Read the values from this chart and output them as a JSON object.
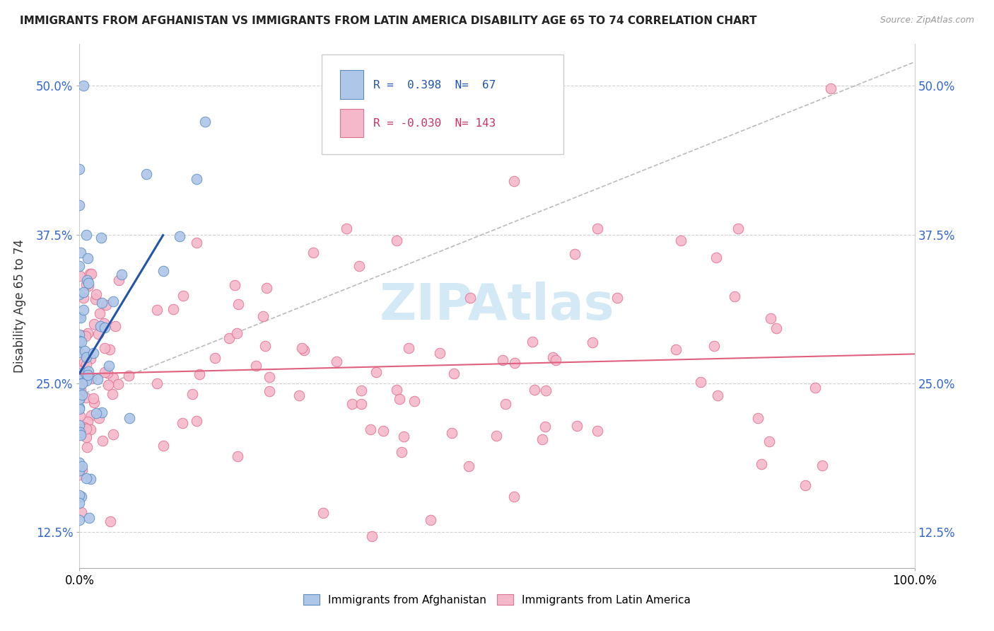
{
  "title": "IMMIGRANTS FROM AFGHANISTAN VS IMMIGRANTS FROM LATIN AMERICA DISABILITY AGE 65 TO 74 CORRELATION CHART",
  "source": "Source: ZipAtlas.com",
  "ylabel": "Disability Age 65 to 74",
  "afghanistan": {
    "R": 0.398,
    "N": 67,
    "color": "#aec6e8",
    "edge_color": "#5b8ec4",
    "line_color": "#2255aa",
    "label": "Immigrants from Afghanistan"
  },
  "latin_america": {
    "R": -0.03,
    "N": 143,
    "color": "#f5b8cb",
    "edge_color": "#e07090",
    "line_color": "#e06080",
    "label": "Immigrants from Latin America"
  },
  "xlim": [
    0.0,
    1.0
  ],
  "ylim": [
    0.095,
    0.535
  ],
  "yticks": [
    0.125,
    0.25,
    0.375,
    0.5
  ],
  "ytick_labels": [
    "12.5%",
    "25.0%",
    "37.5%",
    "50.0%"
  ],
  "xtick_labels_left": "0.0%",
  "xtick_labels_right": "100.0%",
  "watermark": "ZIPAtlas",
  "watermark_color": "#aad4ee",
  "background_color": "#ffffff",
  "grid_color": "#d0d0d0",
  "legend_R_color_af": "#2255aa",
  "legend_R_color_la": "#cc3366",
  "legend_N_color": "#2255aa"
}
